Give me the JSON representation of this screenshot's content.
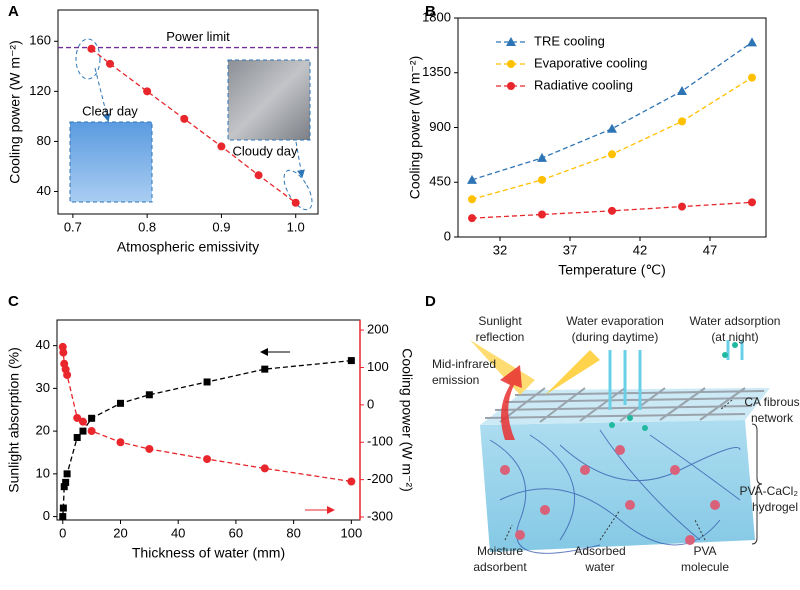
{
  "chart_data": [
    {
      "type": "line",
      "panel_label": "A",
      "x_label": "Atmospheric emissivity",
      "y_label": "Cooling power (W m⁻²)",
      "xlim": [
        0.68,
        1.03
      ],
      "xticks": [
        0.7,
        0.8,
        0.9,
        {
          "value": 1,
          "label": "1.0"
        }
      ],
      "ylim": [
        22,
        185
      ],
      "yticks": [
        40,
        80,
        120,
        160
      ],
      "hline": {
        "value": 155,
        "label": "Power limit",
        "color": "#7030a0"
      },
      "annotations": [
        "Clear day",
        "Cloudy day"
      ],
      "series": [
        {
          "color": "#e8262b",
          "marker": "circle",
          "x": [
            0.725,
            0.75,
            0.8,
            0.85,
            0.9,
            0.95,
            1
          ],
          "values": [
            154,
            142,
            120,
            98,
            76,
            53,
            31
          ]
        }
      ]
    },
    {
      "type": "line",
      "panel_label": "B",
      "x_label": "Temperature (℃)",
      "y_label": "Cooling power (W m⁻²)",
      "xlim": [
        29,
        51
      ],
      "xticks": [
        32,
        37,
        42,
        47
      ],
      "ylim": [
        0,
        1800
      ],
      "yticks": [
        0,
        450,
        900,
        1350,
        1800
      ],
      "legend": "upper-left",
      "series": [
        {
          "name": "TRE cooling",
          "color": "#2e75b6",
          "marker": "triangle",
          "x": [
            30,
            35,
            40,
            45,
            50
          ],
          "values": [
            470,
            650,
            890,
            1200,
            1600
          ]
        },
        {
          "name": "Evaporative cooling",
          "color": "#ffc000",
          "marker": "circle",
          "x": [
            30,
            35,
            40,
            45,
            50
          ],
          "values": [
            310,
            470,
            680,
            950,
            1310
          ]
        },
        {
          "name": "Radiative cooling",
          "color": "#e8262b",
          "marker": "circle",
          "x": [
            30,
            35,
            40,
            45,
            50
          ],
          "values": [
            155,
            185,
            215,
            250,
            285
          ]
        }
      ]
    },
    {
      "type": "line",
      "panel_label": "C",
      "x_label": "Thickness of water (mm)",
      "y_label": "Sunlight absorption (%)",
      "y2_label": "Cooling power (W m⁻²)",
      "xlim": [
        -2,
        103
      ],
      "xticks": [
        0,
        20,
        40,
        60,
        80,
        100
      ],
      "ylim": [
        -0.8,
        46
      ],
      "yticks": [
        0,
        10,
        20,
        30,
        40
      ],
      "y2lim": [
        -308,
        227
      ],
      "y2ticks": [
        -300,
        -200,
        -100,
        0,
        100,
        200
      ],
      "y2color": "#e8262b",
      "series": [
        {
          "color": "#000000",
          "marker": "square",
          "x": [
            0,
            0.2,
            0.5,
            1,
            1.5,
            5,
            7,
            10,
            20,
            30,
            50,
            70,
            100
          ],
          "values": [
            0,
            2,
            7,
            8,
            10,
            18.5,
            20,
            23,
            26.5,
            28.5,
            31.5,
            34.5,
            36.5
          ]
        },
        {
          "color": "#e8262b",
          "marker": "circle",
          "axis": "y2",
          "x": [
            0,
            0.2,
            0.5,
            1,
            1.5,
            5,
            7,
            10,
            20,
            30,
            50,
            70,
            100
          ],
          "values": [
            155,
            140,
            110,
            95,
            80,
            -35,
            -45,
            -70,
            -100,
            -118,
            -145,
            -170,
            -205
          ]
        }
      ]
    }
  ],
  "diagram": {
    "panel_label": "D",
    "labels": [
      {
        "lines": [
          "Sunlight",
          "reflection"
        ]
      },
      {
        "lines": [
          "Water evaporation",
          "(during daytime)"
        ]
      },
      {
        "lines": [
          "Water adsorption",
          "(at night)"
        ]
      },
      {
        "lines": [
          "Mid-infrared",
          "emission"
        ]
      },
      {
        "lines": [
          "CA fibrous",
          "network"
        ]
      },
      {
        "lines": [
          "PVA-CaCl₂",
          "hydrogel"
        ]
      },
      {
        "lines": [
          "Moisture",
          "adsorbent"
        ]
      },
      {
        "lines": [
          "Adsorbed",
          "water"
        ]
      },
      {
        "lines": [
          "PVA",
          "molecule"
        ]
      }
    ]
  }
}
